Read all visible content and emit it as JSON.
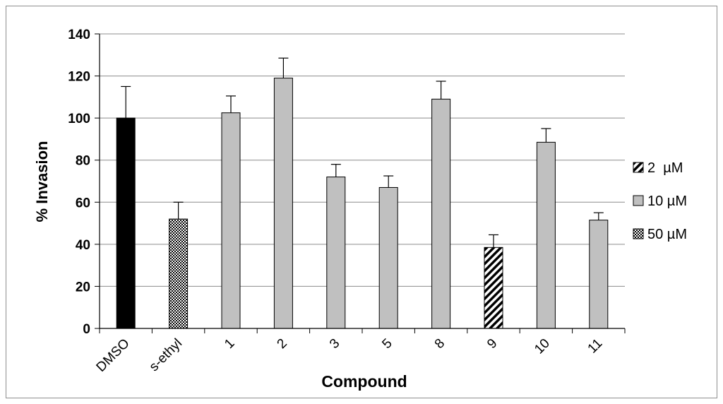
{
  "chart_data": {
    "type": "bar",
    "xlabel": "Compound",
    "ylabel": "% Invasion",
    "ylim": [
      0,
      140
    ],
    "yticks": [
      0,
      20,
      40,
      60,
      80,
      100,
      120,
      140
    ],
    "grid": true,
    "legend_position": "right",
    "categories": [
      "DMSO",
      "s-ethyl",
      "1",
      "2",
      "3",
      "5",
      "8",
      "9",
      "10",
      "11"
    ],
    "values": [
      100,
      52,
      102.5,
      119,
      72,
      67,
      109,
      38.5,
      88.5,
      51.5
    ],
    "errors": [
      15,
      8,
      8,
      9.5,
      6,
      5.5,
      8.5,
      6,
      6.5,
      3.5
    ],
    "bar_groups": [
      "DMSO",
      "50 µM",
      "10 µM",
      "10 µM",
      "10 µM",
      "10 µM",
      "10 µM",
      "2  µM",
      "10 µM",
      "10 µM"
    ],
    "legend": [
      {
        "label": "2  µM",
        "pattern": "diagonal-stripes"
      },
      {
        "label": "10 µM",
        "pattern": "solid-gray"
      },
      {
        "label": "50 µM",
        "pattern": "checkerboard"
      }
    ],
    "colors": {
      "DMSO": "#000000",
      "gray": "#c0c0c0",
      "grid": "#8c8c8c",
      "axis": "#000000"
    }
  }
}
